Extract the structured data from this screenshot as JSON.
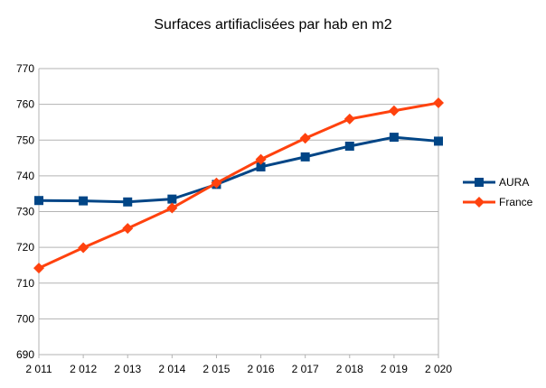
{
  "chart_data": {
    "type": "line",
    "title": "Surfaces artifiaclisées par hab en m2",
    "xlabel": "",
    "ylabel": "",
    "categories": [
      "2 011",
      "2 012",
      "2 013",
      "2 014",
      "2 015",
      "2 016",
      "2 017",
      "2 018",
      "2 019",
      "2 020"
    ],
    "y_ticks": [
      "690",
      "700",
      "710",
      "720",
      "730",
      "740",
      "750",
      "760",
      "770"
    ],
    "ylim": [
      690,
      770
    ],
    "grid": "horizontal",
    "legend_position": "right",
    "series": [
      {
        "name": "AURA",
        "color": "#004586",
        "marker": "square",
        "values": [
          733.1,
          733.0,
          732.7,
          733.5,
          737.6,
          742.5,
          745.3,
          748.3,
          750.8,
          749.7
        ]
      },
      {
        "name": "France",
        "color": "#FF420E",
        "marker": "diamond",
        "values": [
          714.2,
          719.9,
          725.3,
          731.0,
          738.0,
          744.6,
          750.5,
          755.9,
          758.2,
          760.4
        ]
      }
    ]
  }
}
